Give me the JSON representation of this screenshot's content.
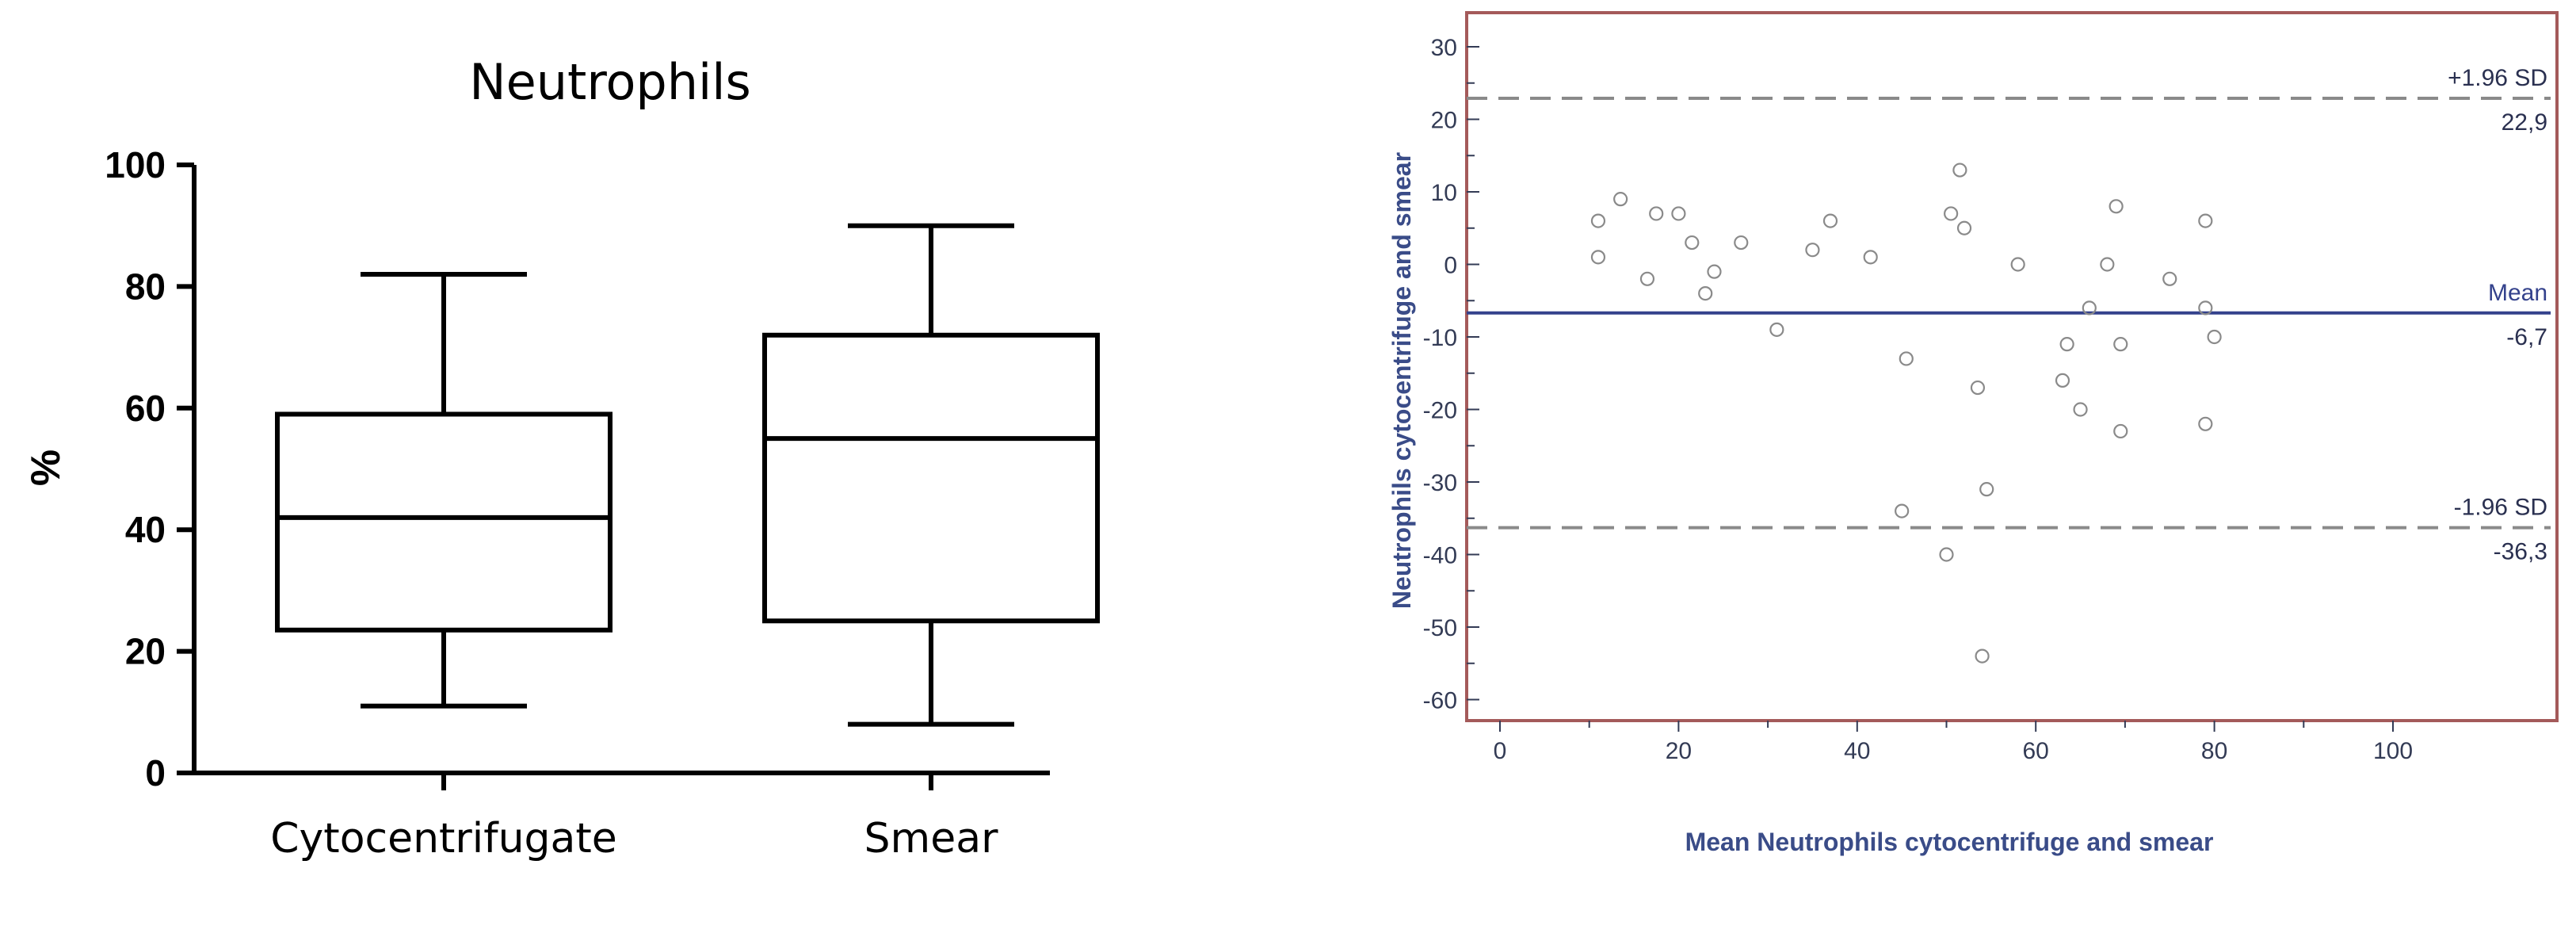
{
  "chart_data": [
    {
      "type": "box",
      "title": "Neutrophils",
      "xlabel": "",
      "ylabel": "%",
      "ylim": [
        0,
        100
      ],
      "yticks": [
        0,
        20,
        40,
        60,
        80,
        100
      ],
      "categories": [
        "Cytocentrifugate",
        "Smear"
      ],
      "boxes": [
        {
          "category": "Cytocentrifugate",
          "min": 11,
          "q1": 23.5,
          "median": 42,
          "q3": 59,
          "max": 82
        },
        {
          "category": "Smear",
          "min": 8,
          "q1": 25,
          "median": 55,
          "q3": 72,
          "max": 90
        }
      ]
    },
    {
      "type": "scatter",
      "title": "",
      "xlabel": "Mean Neutrophils cytocentrifuge and smear",
      "ylabel": "Neutrophils cytocentrifuge and smear",
      "xlim": [
        0,
        100
      ],
      "ylim": [
        -63,
        31
      ],
      "xticks": [
        0,
        20,
        40,
        60,
        80,
        100
      ],
      "yticks": [
        30,
        20,
        10,
        0,
        -10,
        -20,
        -30,
        -40,
        -50,
        -60
      ],
      "reference_lines": [
        {
          "label": "+1.96 SD",
          "value_label": "22,9",
          "y": 22.9,
          "style": "dashed",
          "color": "#8a8a8a"
        },
        {
          "label": "Mean",
          "value_label": "-6,7",
          "y": -6.7,
          "style": "solid",
          "color": "#34428c"
        },
        {
          "label": "-1.96 SD",
          "value_label": "-36,3",
          "y": -36.3,
          "style": "dashed",
          "color": "#8a8a8a"
        }
      ],
      "points": [
        [
          11,
          6
        ],
        [
          11,
          1
        ],
        [
          13.5,
          9
        ],
        [
          16.5,
          -2
        ],
        [
          17.5,
          7
        ],
        [
          20,
          7
        ],
        [
          21.5,
          3
        ],
        [
          23,
          -4
        ],
        [
          24,
          -1
        ],
        [
          27,
          3
        ],
        [
          31,
          -9
        ],
        [
          35,
          2
        ],
        [
          37,
          6
        ],
        [
          41.5,
          1
        ],
        [
          45,
          -34
        ],
        [
          45.5,
          -13
        ],
        [
          50,
          -40
        ],
        [
          50.5,
          7
        ],
        [
          51.5,
          13
        ],
        [
          52,
          5
        ],
        [
          53.5,
          -17
        ],
        [
          54,
          -54
        ],
        [
          54.5,
          -31
        ],
        [
          58,
          0
        ],
        [
          63,
          -16
        ],
        [
          63.5,
          -11
        ],
        [
          65,
          -20
        ],
        [
          66,
          -6
        ],
        [
          68,
          0
        ],
        [
          69,
          8
        ],
        [
          69.5,
          -11
        ],
        [
          69.5,
          -23
        ],
        [
          75,
          -2
        ],
        [
          79,
          6
        ],
        [
          79,
          -6
        ],
        [
          79,
          -22
        ],
        [
          80,
          -10
        ]
      ]
    }
  ]
}
